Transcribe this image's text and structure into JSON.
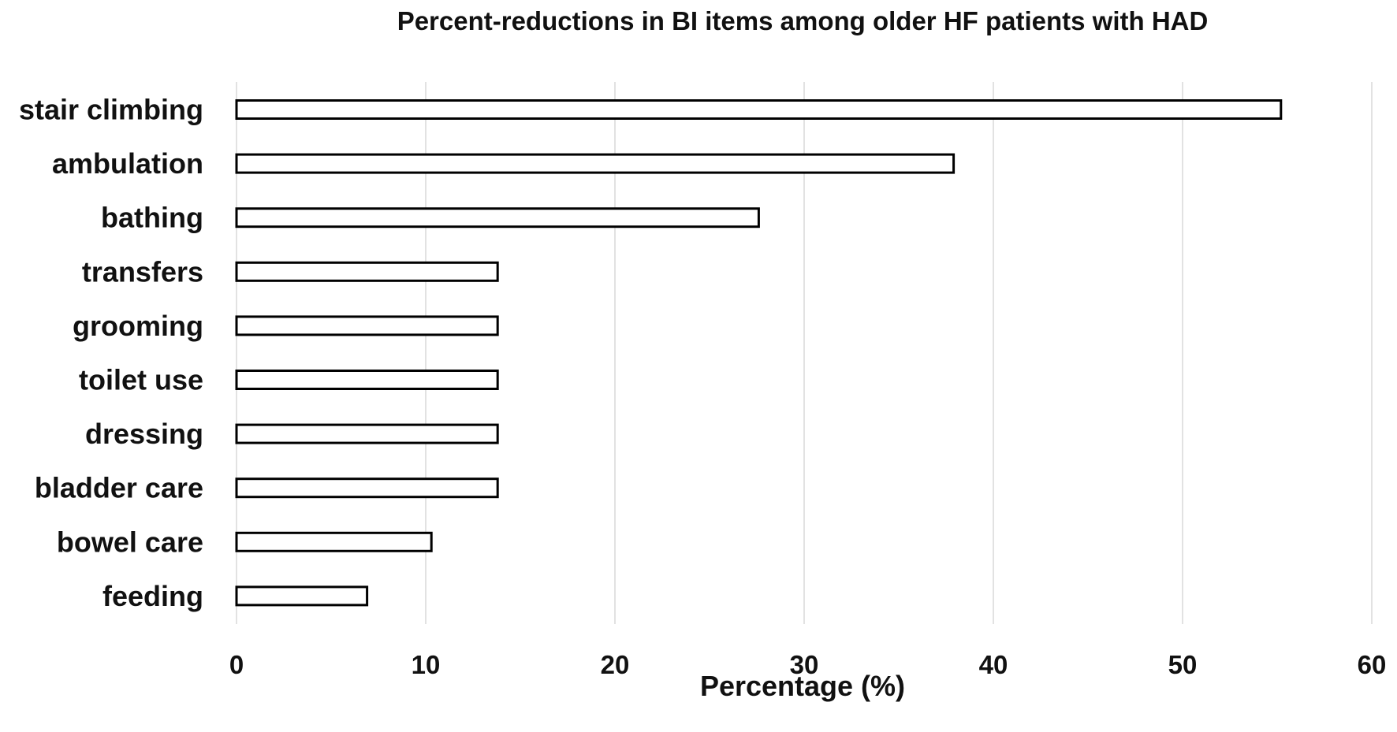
{
  "chart_data": {
    "type": "bar",
    "orientation": "horizontal",
    "title": "Percent-reductions in BI items among older HF patients with HAD",
    "xlabel": "Percentage (%)",
    "ylabel": "",
    "categories": [
      "stair climbing",
      "ambulation",
      "bathing",
      "transfers",
      "grooming",
      "toilet use",
      "dressing",
      "bladder care",
      "bowel care",
      "feeding"
    ],
    "values": [
      55.2,
      37.9,
      27.6,
      13.8,
      13.8,
      13.8,
      13.8,
      13.8,
      10.3,
      6.9
    ],
    "xlim": [
      0,
      60
    ],
    "xticks": [
      "0",
      "10",
      "20",
      "30",
      "40",
      "50",
      "60"
    ],
    "grid": true,
    "legend": "none",
    "colors": {
      "bar_fill": "#ffffff",
      "bar_stroke": "#000000",
      "grid": "#d9d9d9",
      "text": "#111111"
    }
  }
}
